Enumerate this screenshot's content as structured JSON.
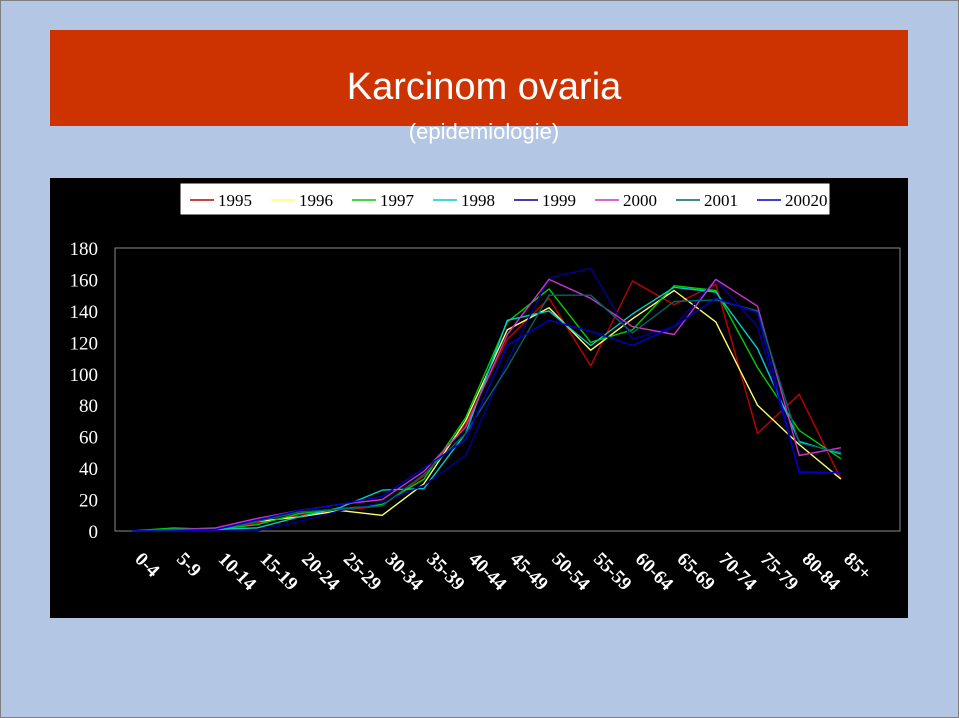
{
  "slide": {
    "title": "Karcinom ovaria",
    "subtitle": "(epidemiologie)"
  },
  "colors": {
    "background": "#b3c6e4",
    "title_bar": "#cc3300",
    "plot_background": "#000000"
  },
  "chart_data": {
    "type": "line",
    "title": "",
    "xlabel": "",
    "ylabel": "",
    "ylim": [
      0,
      180
    ],
    "yticks": [
      0,
      20,
      40,
      60,
      80,
      100,
      120,
      140,
      160,
      180
    ],
    "grid": false,
    "legend_position": "top",
    "categories": [
      "0-4",
      "5-9",
      "10-14",
      "15-19",
      "20-24",
      "25-29",
      "30-34",
      "35-39",
      "40-44",
      "45-49",
      "50-54",
      "55-59",
      "60-64",
      "65-69",
      "70-74",
      "75-79",
      "80-84",
      "85+"
    ],
    "series": [
      {
        "name": "1995",
        "color": "#c00000",
        "values": [
          0,
          0,
          0,
          5,
          10,
          13,
          16,
          35,
          68,
          122,
          148,
          105,
          159,
          144,
          157,
          62,
          87,
          33
        ]
      },
      {
        "name": "1996",
        "color": "#ffff66",
        "values": [
          0,
          1,
          1,
          6,
          9,
          13,
          10,
          30,
          70,
          128,
          142,
          115,
          135,
          153,
          133,
          80,
          55,
          33
        ]
      },
      {
        "name": "1997",
        "color": "#00cc00",
        "values": [
          0,
          2,
          1,
          4,
          11,
          14,
          17,
          33,
          72,
          133,
          154,
          120,
          128,
          156,
          153,
          104,
          64,
          46
        ]
      },
      {
        "name": "1998",
        "color": "#00cccc",
        "values": [
          0,
          1,
          1,
          2,
          9,
          15,
          26,
          27,
          62,
          134,
          140,
          118,
          138,
          155,
          152,
          116,
          57,
          49
        ]
      },
      {
        "name": "1999",
        "color": "#000099",
        "values": [
          0,
          0,
          0,
          0,
          6,
          13,
          18,
          29,
          48,
          108,
          161,
          167,
          122,
          130,
          160,
          130,
          38,
          37
        ]
      },
      {
        "name": "2000",
        "color": "#cc33cc",
        "values": [
          0,
          1,
          2,
          8,
          13,
          17,
          20,
          38,
          66,
          125,
          160,
          148,
          130,
          125,
          160,
          143,
          48,
          53
        ]
      },
      {
        "name": "2001",
        "color": "#006666",
        "values": [
          0,
          1,
          1,
          6,
          12,
          14,
          16,
          36,
          62,
          104,
          150,
          150,
          126,
          146,
          147,
          140,
          56,
          50
        ]
      },
      {
        "name": "20020",
        "color": "#0000cc",
        "values": [
          0,
          0,
          1,
          7,
          13,
          17,
          22,
          40,
          58,
          118,
          134,
          127,
          118,
          130,
          148,
          139,
          37,
          37
        ]
      }
    ]
  }
}
